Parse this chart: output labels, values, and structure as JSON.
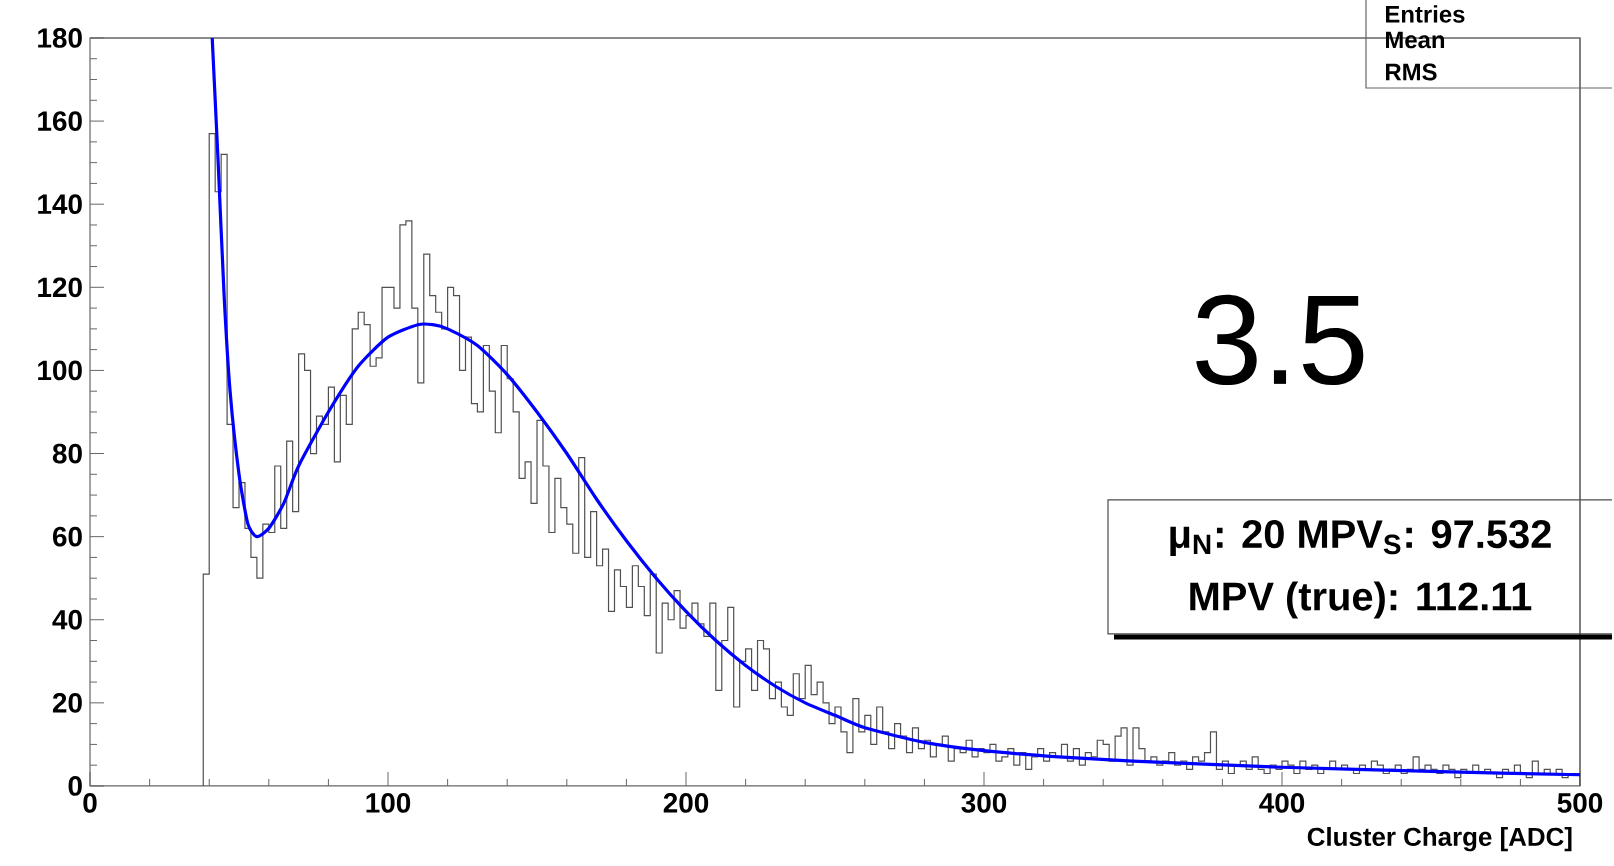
{
  "chart_data": {
    "type": "histogram",
    "xlabel": "Cluster Charge [ADC]",
    "xlim": [
      0,
      500
    ],
    "ylim": [
      0,
      180
    ],
    "xticks": [
      0,
      100,
      200,
      300,
      400,
      500
    ],
    "yticks": [
      0,
      20,
      40,
      60,
      80,
      100,
      120,
      140,
      160,
      180
    ],
    "annotations": [
      "Entries",
      "Mean",
      "RMS",
      "3.5",
      "μ$_{N}$: 20 MPV$_{S}$: 97.532",
      "MPV (true): 112.11"
    ],
    "series": [
      {
        "type": "histogram",
        "color": "#505050",
        "bins": [
          38,
          40,
          42,
          44,
          46,
          48,
          50,
          52,
          54,
          56,
          58,
          60,
          62,
          64,
          66,
          68,
          70,
          72,
          74,
          76,
          78,
          80,
          82,
          84,
          86,
          88,
          90,
          92,
          94,
          96,
          98,
          100,
          102,
          104,
          106,
          108,
          110,
          112,
          114,
          116,
          118,
          120,
          122,
          124,
          126,
          128,
          130,
          132,
          134,
          136,
          138,
          140,
          142,
          144,
          146,
          148,
          150,
          152,
          154,
          156,
          158,
          160,
          162,
          164,
          166,
          168,
          170,
          172,
          174,
          176,
          178,
          180,
          182,
          184,
          186,
          188,
          190,
          192,
          194,
          196,
          198,
          200,
          202,
          204,
          206,
          208,
          210,
          212,
          214,
          216,
          218,
          220,
          222,
          224,
          226,
          228,
          230,
          232,
          234,
          236,
          238,
          240,
          242,
          244,
          246,
          248,
          250,
          252,
          254,
          256,
          258,
          260,
          262,
          264,
          266,
          268,
          270,
          272,
          274,
          276,
          278,
          280,
          282,
          284,
          286,
          288,
          290,
          292,
          294,
          296,
          298,
          300,
          302,
          304,
          306,
          308,
          310,
          312,
          314,
          316,
          318,
          320,
          322,
          324,
          326,
          328,
          330,
          332,
          334,
          336,
          338,
          340,
          342,
          344,
          346,
          348,
          350,
          352,
          354,
          356,
          358,
          360,
          362,
          364,
          366,
          368,
          370,
          372,
          374,
          376,
          378,
          380,
          382,
          384,
          386,
          388,
          390,
          392,
          394,
          396,
          398,
          400,
          402,
          404,
          406,
          408,
          410,
          412,
          414,
          416,
          418,
          420,
          422,
          424,
          426,
          428,
          430,
          432,
          434,
          436,
          438,
          440,
          442,
          444,
          446,
          448,
          450,
          452,
          454,
          456,
          458,
          460,
          462,
          464,
          466,
          468,
          470,
          472,
          474,
          476,
          478,
          480,
          482,
          484,
          486,
          488,
          490,
          492,
          494,
          496,
          498,
          500
        ],
        "values": [
          51,
          157,
          143,
          152,
          87,
          67,
          73,
          62,
          55,
          50,
          63,
          61,
          77,
          62,
          83,
          66,
          104,
          100,
          80,
          89,
          87,
          96,
          78,
          94,
          87,
          110,
          114,
          111,
          101,
          103,
          120,
          120,
          115,
          135,
          136,
          115,
          97,
          128,
          118,
          114,
          110,
          120,
          118,
          100,
          108,
          92,
          90,
          106,
          95,
          85,
          106,
          98,
          90,
          74,
          78,
          68,
          88,
          77,
          61,
          74,
          67,
          63,
          56,
          79,
          55,
          66,
          53,
          57,
          42,
          52,
          48,
          43,
          53,
          48,
          41,
          51,
          32,
          44,
          40,
          47,
          38,
          41,
          44,
          39,
          36,
          44,
          23,
          35,
          43,
          19,
          30,
          33,
          23,
          35,
          33,
          21,
          25,
          19,
          17,
          27,
          21,
          29,
          22,
          25,
          20,
          15,
          19,
          13,
          8,
          21,
          13,
          17,
          10,
          19,
          13,
          9,
          15,
          12,
          8,
          14,
          9,
          11,
          7,
          10,
          12,
          6,
          9,
          8,
          11,
          7,
          9,
          8,
          10,
          6,
          7,
          9,
          5,
          8,
          4,
          7,
          9,
          6,
          8,
          7,
          10,
          6,
          9,
          5,
          8,
          7,
          11,
          10,
          6,
          12,
          14,
          5,
          14,
          9,
          6,
          7,
          5,
          6,
          8,
          5,
          6,
          4,
          7,
          6,
          8,
          13,
          4,
          6,
          3,
          5,
          6,
          4,
          7,
          4,
          3,
          5,
          4,
          6,
          5,
          3,
          6,
          4,
          5,
          3,
          4,
          6,
          4,
          5,
          4,
          3,
          5,
          4,
          6,
          5,
          3,
          4,
          5,
          3,
          4,
          7,
          4,
          5,
          4,
          3,
          5,
          4,
          2,
          4,
          3,
          5,
          3,
          4,
          3,
          2,
          4,
          3,
          5,
          3,
          2,
          6,
          3,
          4,
          3,
          4,
          2,
          3,
          3
        ]
      },
      {
        "type": "line",
        "color": "#0000ff",
        "x": [
          41,
          43,
          45,
          47,
          50,
          53,
          56,
          60,
          65,
          70,
          80,
          90,
          100,
          110,
          115,
          120,
          130,
          140,
          150,
          160,
          170,
          180,
          190,
          200,
          210,
          220,
          230,
          240,
          250,
          260,
          280,
          300,
          325,
          350,
          400,
          450,
          500
        ],
        "values": [
          180,
          150,
          118,
          95,
          75,
          63,
          60,
          62,
          68,
          77,
          90,
          101,
          108,
          111,
          111,
          110,
          106,
          99,
          90,
          80,
          69,
          59,
          50,
          42,
          35,
          29,
          24,
          20,
          17,
          14,
          10.5,
          8.5,
          7,
          6,
          4.5,
          3.5,
          2.7
        ]
      }
    ]
  }
}
